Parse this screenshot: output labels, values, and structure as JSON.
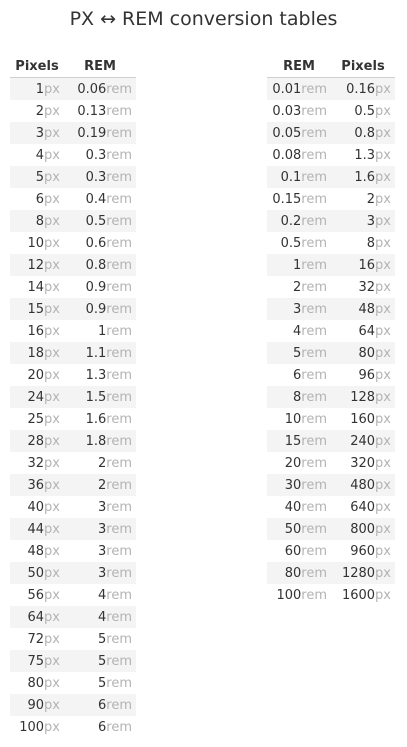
{
  "title": "PX ↔ REM conversion tables",
  "px_to_rem": {
    "headers": [
      "Pixels",
      "REM"
    ],
    "rows": [
      {
        "px": "1",
        "rem": "0.06"
      },
      {
        "px": "2",
        "rem": "0.13"
      },
      {
        "px": "3",
        "rem": "0.19"
      },
      {
        "px": "4",
        "rem": "0.3"
      },
      {
        "px": "5",
        "rem": "0.3"
      },
      {
        "px": "6",
        "rem": "0.4"
      },
      {
        "px": "8",
        "rem": "0.5"
      },
      {
        "px": "10",
        "rem": "0.6"
      },
      {
        "px": "12",
        "rem": "0.8"
      },
      {
        "px": "14",
        "rem": "0.9"
      },
      {
        "px": "15",
        "rem": "0.9"
      },
      {
        "px": "16",
        "rem": "1"
      },
      {
        "px": "18",
        "rem": "1.1"
      },
      {
        "px": "20",
        "rem": "1.3"
      },
      {
        "px": "24",
        "rem": "1.5"
      },
      {
        "px": "25",
        "rem": "1.6"
      },
      {
        "px": "28",
        "rem": "1.8"
      },
      {
        "px": "32",
        "rem": "2"
      },
      {
        "px": "36",
        "rem": "2"
      },
      {
        "px": "40",
        "rem": "3"
      },
      {
        "px": "44",
        "rem": "3"
      },
      {
        "px": "48",
        "rem": "3"
      },
      {
        "px": "50",
        "rem": "3"
      },
      {
        "px": "56",
        "rem": "4"
      },
      {
        "px": "64",
        "rem": "4"
      },
      {
        "px": "72",
        "rem": "5"
      },
      {
        "px": "75",
        "rem": "5"
      },
      {
        "px": "80",
        "rem": "5"
      },
      {
        "px": "90",
        "rem": "6"
      },
      {
        "px": "100",
        "rem": "6"
      }
    ]
  },
  "rem_to_px": {
    "headers": [
      "REM",
      "Pixels"
    ],
    "rows": [
      {
        "rem": "0.01",
        "px": "0.16"
      },
      {
        "rem": "0.03",
        "px": "0.5"
      },
      {
        "rem": "0.05",
        "px": "0.8"
      },
      {
        "rem": "0.08",
        "px": "1.3"
      },
      {
        "rem": "0.1",
        "px": "1.6"
      },
      {
        "rem": "0.15",
        "px": "2"
      },
      {
        "rem": "0.2",
        "px": "3"
      },
      {
        "rem": "0.5",
        "px": "8"
      },
      {
        "rem": "1",
        "px": "16"
      },
      {
        "rem": "2",
        "px": "32"
      },
      {
        "rem": "3",
        "px": "48"
      },
      {
        "rem": "4",
        "px": "64"
      },
      {
        "rem": "5",
        "px": "80"
      },
      {
        "rem": "6",
        "px": "96"
      },
      {
        "rem": "8",
        "px": "128"
      },
      {
        "rem": "10",
        "px": "160"
      },
      {
        "rem": "15",
        "px": "240"
      },
      {
        "rem": "20",
        "px": "320"
      },
      {
        "rem": "30",
        "px": "480"
      },
      {
        "rem": "40",
        "px": "640"
      },
      {
        "rem": "50",
        "px": "800"
      },
      {
        "rem": "60",
        "px": "960"
      },
      {
        "rem": "80",
        "px": "1280"
      },
      {
        "rem": "100",
        "px": "1600"
      }
    ]
  },
  "units": {
    "px": "px",
    "rem": "rem"
  },
  "colors": {
    "text": "#333333",
    "unit": "#b3b3b3",
    "stripe": "#f4f4f4",
    "rule": "#cfcfcf"
  }
}
